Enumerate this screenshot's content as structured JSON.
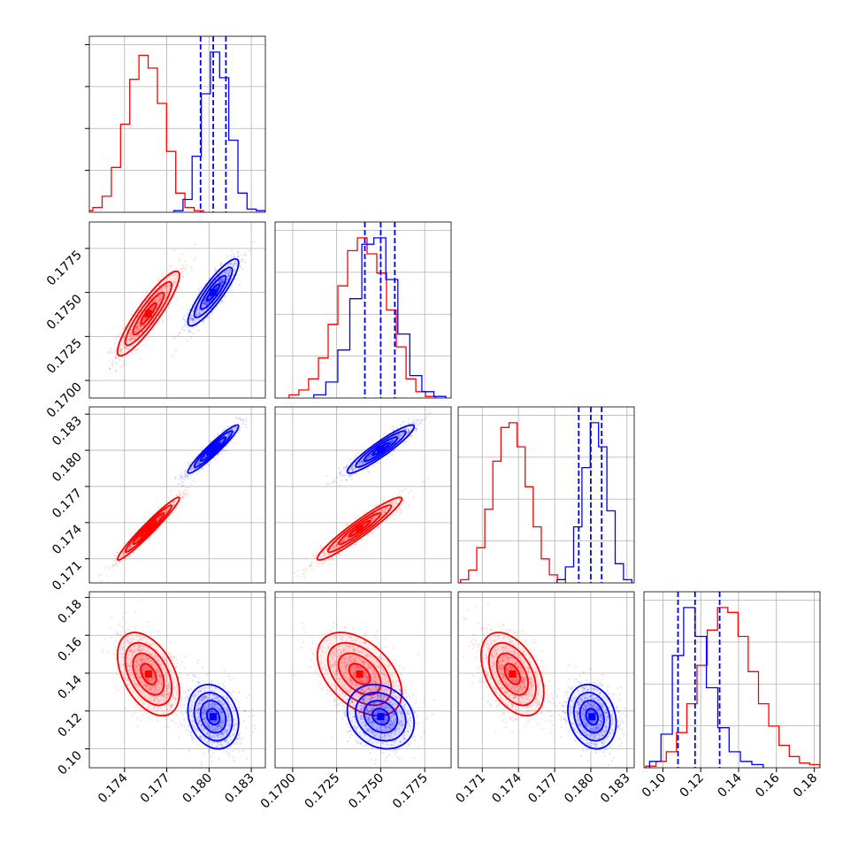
{
  "colors": {
    "series_a": "#ff0000",
    "series_b": "#0000ff",
    "grid": "#b0b0b0",
    "axes": "#000000"
  },
  "chart_data": {
    "type": "corner",
    "grid": true,
    "n_params": 4,
    "series": [
      {
        "color": "#ff0000",
        "means": [
          0.1757,
          0.1738,
          0.1735,
          0.1395
        ],
        "stds": [
          0.0011,
          0.0012,
          0.0013,
          0.011
        ],
        "corr": [
          [
            1,
            0.9,
            0.97,
            -0.45
          ],
          [
            0.9,
            1,
            0.95,
            -0.45
          ],
          [
            0.97,
            0.95,
            1,
            -0.45
          ],
          [
            -0.45,
            -0.45,
            -0.45,
            1
          ]
        ],
        "hist": [
          [
            0.01,
            0.03,
            0.1,
            0.28,
            0.55,
            0.83,
            0.98,
            0.9,
            0.68,
            0.38,
            0.12,
            0.03,
            0.01
          ],
          [
            0.02,
            0.05,
            0.12,
            0.25,
            0.46,
            0.7,
            0.92,
            1.0,
            0.9,
            0.78,
            0.55,
            0.32,
            0.12,
            0.04,
            0.01
          ],
          [
            0.02,
            0.08,
            0.22,
            0.46,
            0.76,
            0.97,
            1.0,
            0.85,
            0.6,
            0.35,
            0.15,
            0.05,
            0.02
          ],
          [
            0.01,
            0.04,
            0.1,
            0.22,
            0.4,
            0.64,
            0.86,
            1.0,
            0.97,
            0.82,
            0.6,
            0.4,
            0.26,
            0.14,
            0.07,
            0.03,
            0.02
          ]
        ],
        "hist_ranges": [
          [
            0.1711,
            0.1796
          ],
          [
            0.1698,
            0.1781
          ],
          [
            0.1692,
            0.1779
          ],
          [
            0.091,
            0.183
          ]
        ]
      },
      {
        "color": "#0000ff",
        "means": [
          0.1803,
          0.175,
          0.1801,
          0.117
        ],
        "stds": [
          0.0009,
          0.00095,
          0.001,
          0.0085
        ],
        "corr": [
          [
            1,
            0.88,
            0.95,
            -0.2
          ],
          [
            0.88,
            1,
            0.93,
            -0.2
          ],
          [
            0.95,
            0.93,
            1,
            -0.2
          ],
          [
            -0.2,
            -0.2,
            -0.2,
            1
          ]
        ],
        "hist": [
          [
            0.01,
            0.08,
            0.35,
            0.74,
            1.0,
            0.84,
            0.45,
            0.12,
            0.02,
            0.01
          ],
          [
            0.02,
            0.1,
            0.3,
            0.62,
            0.96,
            1.0,
            0.74,
            0.4,
            0.14,
            0.04,
            0.01
          ],
          [
            0.02,
            0.1,
            0.35,
            0.72,
            1.0,
            0.85,
            0.45,
            0.12,
            0.02
          ],
          [
            0.04,
            0.21,
            0.7,
            1.0,
            0.82,
            0.5,
            0.25,
            0.1,
            0.04,
            0.02
          ]
        ],
        "hist_ranges": [
          [
            0.1775,
            0.184
          ],
          [
            0.1712,
            0.1787
          ],
          [
            0.1772,
            0.1834
          ],
          [
            0.093,
            0.153
          ]
        ],
        "quantiles": [
          [
            0.1794,
            0.1803,
            0.1812
          ],
          [
            0.1741,
            0.175,
            0.1758
          ],
          [
            0.179,
            0.18,
            0.1809
          ],
          [
            0.108,
            0.117,
            0.13
          ]
        ]
      }
    ],
    "axes": [
      {
        "range": [
          0.1715,
          0.184
        ],
        "ticks": [
          0.174,
          0.177,
          0.18,
          0.183
        ],
        "tick_labels": [
          "0.174",
          "0.177",
          "0.180",
          "0.183"
        ]
      },
      {
        "range": [
          0.169,
          0.179
        ],
        "ticks": [
          0.17,
          0.1725,
          0.175,
          0.1775
        ],
        "tick_labels": [
          "0.1700",
          "0.1725",
          "0.1750",
          "0.1775"
        ]
      },
      {
        "range": [
          0.169,
          0.1836
        ],
        "ticks": [
          0.171,
          0.174,
          0.177,
          0.18,
          0.183
        ],
        "tick_labels": [
          "0.171",
          "0.174",
          "0.177",
          "0.180",
          "0.183"
        ]
      },
      {
        "range": [
          0.09,
          0.183
        ],
        "ticks": [
          0.1,
          0.12,
          0.14,
          0.16,
          0.18
        ],
        "tick_labels": [
          "0.10",
          "0.12",
          "0.14",
          "0.16",
          "0.18"
        ]
      }
    ]
  }
}
